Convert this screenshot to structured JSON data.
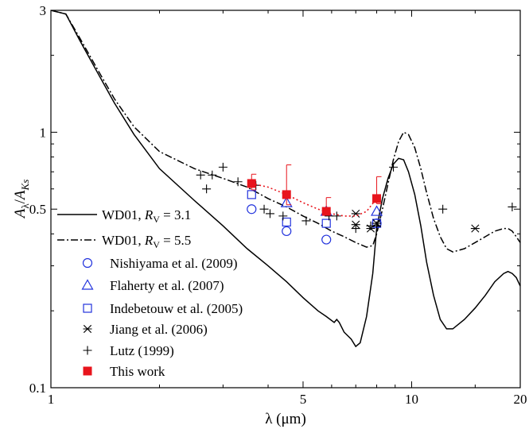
{
  "chart_data": {
    "type": "scatter",
    "x_scale": "log",
    "y_scale": "log",
    "xlim": [
      1,
      20
    ],
    "ylim": [
      0.1,
      3
    ],
    "xlabel": "λ (μm)",
    "ylabel": {
      "a": "A",
      "a_sub": "λ",
      "sep": "/",
      "b": "A",
      "b_sub": "Ks"
    },
    "x_ticks": [
      {
        "value": 1,
        "label": "1"
      },
      {
        "value": 5,
        "label": "5"
      },
      {
        "value": 10,
        "label": "10"
      },
      {
        "value": 20,
        "label": "20"
      }
    ],
    "y_ticks": [
      {
        "value": 0.1,
        "label": "0.1"
      },
      {
        "value": 0.5,
        "label": "0.5"
      },
      {
        "value": 1,
        "label": "1"
      },
      {
        "value": 3,
        "label": "3"
      }
    ],
    "grid": false,
    "legend_position": "bottom-left",
    "colors": {
      "blue": "#2233dd",
      "red": "#e8141c",
      "black": "#000000"
    },
    "series": [
      {
        "name": "WD01, R_V = 3.1",
        "legend": {
          "prefix": "WD01, ",
          "var": "R",
          "var_sub": "V",
          "suffix": " = 3.1"
        },
        "kind": "line",
        "style": "solid",
        "color": "#000000",
        "x": [
          1.0,
          1.1,
          1.2,
          1.35,
          1.5,
          1.7,
          2.0,
          2.5,
          3.0,
          3.5,
          4.0,
          4.5,
          5.0,
          5.5,
          5.8,
          6.1,
          6.2,
          6.3,
          6.5,
          6.8,
          7.0,
          7.2,
          7.5,
          7.8,
          8.0,
          8.3,
          8.6,
          8.9,
          9.2,
          9.5,
          9.8,
          10.2,
          10.6,
          11.0,
          11.5,
          12.0,
          12.5,
          13.0,
          14.0,
          15.0,
          16.0,
          17.0,
          18.0,
          18.5,
          19.0,
          19.5,
          20.0
        ],
        "y": [
          3.0,
          2.9,
          2.3,
          1.7,
          1.3,
          0.98,
          0.72,
          0.54,
          0.43,
          0.35,
          0.3,
          0.26,
          0.225,
          0.2,
          0.19,
          0.18,
          0.185,
          0.18,
          0.165,
          0.155,
          0.145,
          0.15,
          0.19,
          0.28,
          0.42,
          0.55,
          0.66,
          0.75,
          0.79,
          0.78,
          0.7,
          0.57,
          0.43,
          0.31,
          0.23,
          0.185,
          0.17,
          0.17,
          0.185,
          0.205,
          0.23,
          0.26,
          0.28,
          0.285,
          0.28,
          0.27,
          0.25
        ]
      },
      {
        "name": "WD01, R_V = 5.5",
        "legend": {
          "prefix": "WD01, ",
          "var": "R",
          "var_sub": "V",
          "suffix": " = 5.5"
        },
        "kind": "line",
        "style": "dashdot",
        "color": "#000000",
        "x": [
          1.0,
          1.1,
          1.2,
          1.35,
          1.5,
          1.7,
          2.0,
          2.5,
          3.0,
          3.5,
          4.0,
          4.5,
          5.0,
          5.5,
          6.0,
          6.5,
          7.0,
          7.5,
          7.8,
          8.0,
          8.3,
          8.6,
          8.9,
          9.2,
          9.5,
          9.8,
          10.2,
          10.6,
          11.0,
          11.5,
          12.0,
          12.5,
          13.0,
          14.0,
          15.0,
          16.0,
          17.0,
          18.0,
          18.5,
          19.0,
          19.5,
          20.0
        ],
        "y": [
          3.0,
          2.9,
          2.35,
          1.75,
          1.35,
          1.05,
          0.84,
          0.72,
          0.66,
          0.61,
          0.55,
          0.51,
          0.47,
          0.44,
          0.41,
          0.39,
          0.37,
          0.355,
          0.36,
          0.4,
          0.5,
          0.63,
          0.78,
          0.92,
          1.0,
          0.98,
          0.87,
          0.72,
          0.58,
          0.46,
          0.39,
          0.35,
          0.34,
          0.35,
          0.37,
          0.39,
          0.41,
          0.42,
          0.42,
          0.41,
          0.39,
          0.37
        ]
      },
      {
        "name": "Nishiyama et al. (2009)",
        "kind": "marker",
        "marker": "circle-open",
        "color": "#2233dd",
        "x": [
          3.6,
          4.5,
          5.8,
          8.0
        ],
        "y": [
          0.5,
          0.41,
          0.38,
          0.44
        ]
      },
      {
        "name": "Flaherty et al. (2007)",
        "kind": "marker",
        "marker": "triangle-open",
        "color": "#2233dd",
        "x": [
          4.5,
          5.8,
          8.0
        ],
        "y": [
          0.53,
          0.49,
          0.49
        ]
      },
      {
        "name": "Indebetouw et al. (2005)",
        "kind": "marker",
        "marker": "square-open",
        "color": "#2233dd",
        "x": [
          3.6,
          4.5,
          5.8,
          8.0
        ],
        "y": [
          0.57,
          0.445,
          0.44,
          0.44
        ]
      },
      {
        "name": "Jiang et al. (2006)",
        "kind": "marker",
        "marker": "asterisk",
        "color": "#000000",
        "x": [
          7.0,
          7.0,
          7.7,
          8.0,
          15.0
        ],
        "y": [
          0.48,
          0.435,
          0.42,
          0.44,
          0.42
        ]
      },
      {
        "name": "Lutz (1999)",
        "kind": "marker",
        "marker": "plus",
        "color": "#000000",
        "x": [
          2.6,
          2.7,
          2.8,
          3.0,
          3.3,
          3.7,
          3.9,
          4.05,
          4.4,
          5.1,
          5.9,
          6.2,
          7.0,
          7.7,
          8.0,
          8.9,
          12.2,
          19.0
        ],
        "y": [
          0.68,
          0.6,
          0.68,
          0.73,
          0.64,
          0.62,
          0.5,
          0.48,
          0.47,
          0.45,
          0.47,
          0.47,
          0.42,
          0.43,
          0.43,
          0.73,
          0.5,
          0.51
        ]
      },
      {
        "name": "This work",
        "kind": "marker",
        "marker": "square-filled",
        "color": "#e8141c",
        "x": [
          3.6,
          4.5,
          5.8,
          8.0
        ],
        "y": [
          0.63,
          0.57,
          0.49,
          0.55
        ],
        "error_upper": [
          0.685,
          0.745,
          0.555,
          0.67
        ],
        "error_lower": [
          0.595,
          0.52,
          0.475,
          0.525
        ],
        "fit_curve": {
          "style": "dotted",
          "x": [
            3.6,
            4.0,
            4.5,
            5.0,
            5.5,
            6.0,
            6.5,
            7.0,
            7.5,
            8.0
          ],
          "y": [
            0.63,
            0.61,
            0.57,
            0.53,
            0.5,
            0.48,
            0.47,
            0.47,
            0.49,
            0.55
          ]
        }
      }
    ]
  }
}
